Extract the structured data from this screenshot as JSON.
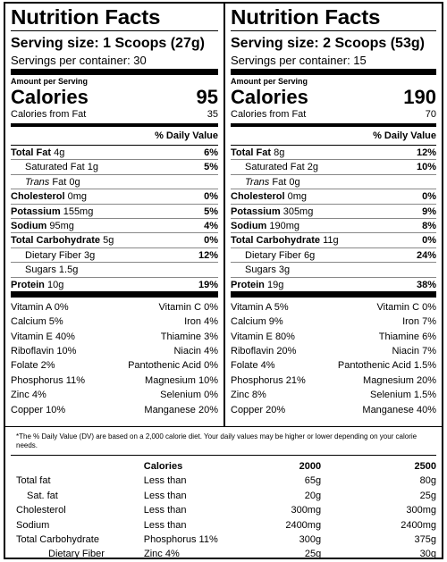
{
  "panels": [
    {
      "title": "Nutrition Facts",
      "serving_size": "Serving size:  1 Scoops (27g)",
      "servings_per": "Servings per container: 30",
      "amount_per": "Amount per Serving",
      "calories_label": "Calories",
      "calories": "95",
      "cal_from_fat_label": "Calories from Fat",
      "cal_from_fat": "35",
      "dv_header": "% Daily Value",
      "nutrients": [
        {
          "name": "Total Fat",
          "amount": "4g",
          "dv": "6%"
        },
        {
          "name": "Saturated Fat",
          "amount": "1g",
          "dv": "5%"
        },
        {
          "name": "Trans",
          "name2": "Fat",
          "amount": "0g",
          "dv": ""
        },
        {
          "name": "Cholesterol",
          "amount": "0mg",
          "dv": "0%"
        },
        {
          "name": "Potassium",
          "amount": "155mg",
          "dv": "5%"
        },
        {
          "name": "Sodium",
          "amount": "95mg",
          "dv": "4%"
        },
        {
          "name": "Total Carbohydrate",
          "amount": "5g",
          "dv": "0%"
        },
        {
          "name": "Dietary Fiber",
          "amount": "3g",
          "dv": "12%"
        },
        {
          "name": "Sugars",
          "amount": "1.5g",
          "dv": ""
        },
        {
          "name": "Protein",
          "amount": "10g",
          "dv": "19%"
        }
      ],
      "vitamins": [
        [
          "Vitamin A",
          "0%",
          "Vitamin C",
          "0%"
        ],
        [
          "Calcium",
          "5%",
          "Iron",
          "4%"
        ],
        [
          "Vitamin E",
          "40%",
          "Thiamine",
          "3%"
        ],
        [
          "Riboflavin",
          "10%",
          "Niacin",
          "4%"
        ],
        [
          "Folate",
          "2%",
          "Pantothenic Acid",
          "0%"
        ],
        [
          "Phosphorus",
          "11%",
          "Magnesium",
          "10%"
        ],
        [
          "Zinc",
          "4%",
          "Selenium",
          "0%"
        ],
        [
          "Copper",
          "10%",
          "Manganese",
          "20%"
        ]
      ]
    },
    {
      "title": "Nutrition Facts",
      "serving_size": "Serving size:  2 Scoops (53g)",
      "servings_per": "Servings per container: 15",
      "amount_per": "Amount per Serving",
      "calories_label": "Calories",
      "calories": "190",
      "cal_from_fat_label": "Calories from Fat",
      "cal_from_fat": "70",
      "dv_header": "% Daily Value",
      "nutrients": [
        {
          "name": "Total Fat",
          "amount": "8g",
          "dv": "12%"
        },
        {
          "name": "Saturated Fat",
          "amount": "2g",
          "dv": "10%"
        },
        {
          "name": "Trans",
          "name2": "Fat",
          "amount": "0g",
          "dv": ""
        },
        {
          "name": "Cholesterol",
          "amount": "0mg",
          "dv": "0%"
        },
        {
          "name": "Potassium",
          "amount": "305mg",
          "dv": "9%"
        },
        {
          "name": "Sodium",
          "amount": "190mg",
          "dv": "8%"
        },
        {
          "name": "Total Carbohydrate",
          "amount": "11g",
          "dv": "0%"
        },
        {
          "name": "Dietary Fiber",
          "amount": "6g",
          "dv": "24%"
        },
        {
          "name": "Sugars",
          "amount": "3g",
          "dv": ""
        },
        {
          "name": "Protein",
          "amount": "19g",
          "dv": "38%"
        }
      ],
      "vitamins": [
        [
          "Vitamin A",
          "5%",
          "Vitamin C",
          "0%"
        ],
        [
          "Calcium",
          "9%",
          "Iron",
          "7%"
        ],
        [
          "Vitamin E",
          "80%",
          "Thiamine",
          "6%"
        ],
        [
          "Riboflavin",
          "20%",
          "Niacin",
          "7%"
        ],
        [
          "Folate",
          "4%",
          "Pantothenic Acid",
          "1.5%"
        ],
        [
          "Phosphorus",
          "21%",
          "Magnesium",
          "20%"
        ],
        [
          "Zinc",
          "8%",
          "Selenium",
          "1.5%"
        ],
        [
          "Copper",
          "20%",
          "Manganese",
          "40%"
        ]
      ]
    }
  ],
  "footnote": "*The % Daily Value (DV) are based on a 2,000 calorie diet. Your daily values may be higher or lower depending on your calorie needs.",
  "footer_table": {
    "header": [
      "",
      "Calories",
      "2000",
      "2500"
    ],
    "rows": [
      [
        "Total fat",
        "Less than",
        "65g",
        "80g"
      ],
      [
        "Sat. fat",
        "Less than",
        "20g",
        "25g"
      ],
      [
        "Cholesterol",
        "Less than",
        "300mg",
        "300mg"
      ],
      [
        "Sodium",
        "Less than",
        "2400mg",
        "2400mg"
      ],
      [
        "Total Carbohydrate",
        "Phosphorus  11%",
        "300g",
        "375g"
      ],
      [
        "Dietary Fiber",
        "Zinc  4%",
        "25g",
        "30g"
      ]
    ]
  }
}
